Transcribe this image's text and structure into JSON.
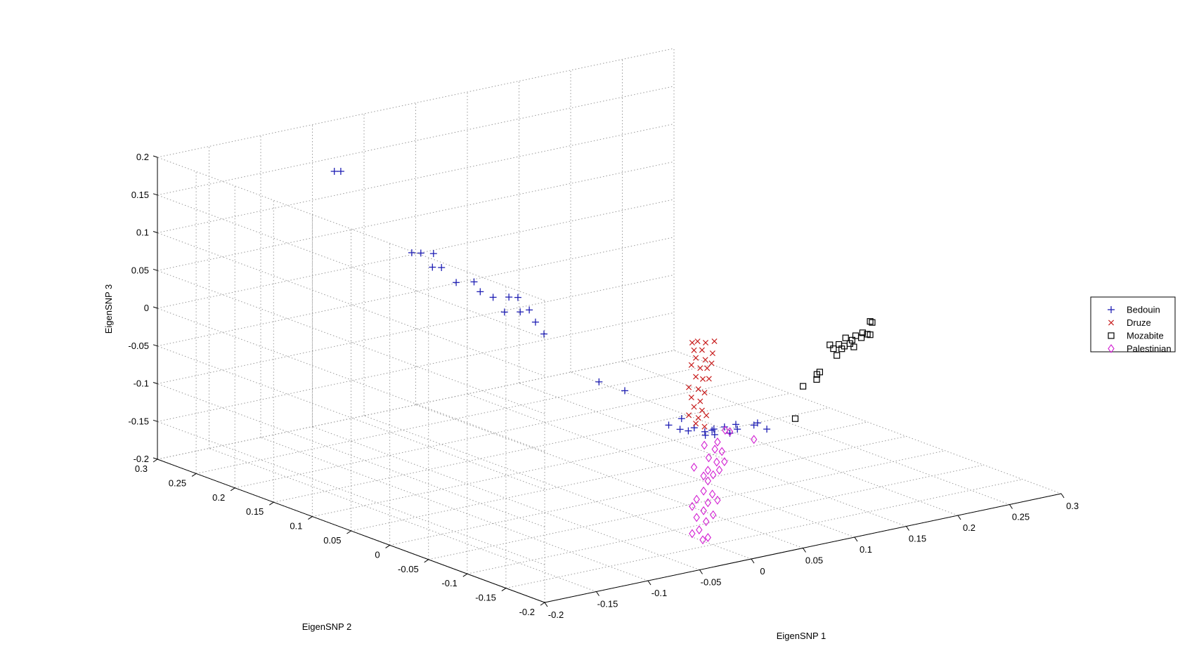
{
  "chart_data": {
    "type": "scatter",
    "subtype": "scatter3d",
    "xlabel": "EigenSNP 1",
    "ylabel": "EigenSNP 2",
    "zlabel": "EigenSNP 3",
    "xlim": [
      -0.2,
      0.3
    ],
    "ylim": [
      -0.2,
      0.3
    ],
    "zlim": [
      -0.2,
      0.2
    ],
    "x_ticks": [
      "-0.2",
      "-0.15",
      "-0.1",
      "-0.05",
      "0",
      "0.05",
      "0.1",
      "0.15",
      "0.2",
      "0.25",
      "0.3"
    ],
    "y_ticks": [
      "-0.2",
      "-0.15",
      "-0.1",
      "-0.05",
      "0",
      "0.05",
      "0.1",
      "0.15",
      "0.2",
      "0.25",
      "0.3"
    ],
    "z_ticks": [
      "-0.2",
      "-0.15",
      "-0.1",
      "-0.05",
      "0",
      "0.05",
      "0.1",
      "0.15",
      "0.2"
    ],
    "grid": true,
    "legend_position": "right",
    "series": [
      {
        "name": "Bedouin",
        "marker": "plus",
        "color": "#1f1fb4",
        "points": [
          [
            -0.064,
            0.253,
            0.16
          ],
          [
            -0.06,
            0.25,
            0.16
          ],
          [
            -0.055,
            0.165,
            0.083
          ],
          [
            -0.05,
            0.16,
            0.083
          ],
          [
            -0.043,
            0.153,
            0.083
          ],
          [
            -0.05,
            0.145,
            0.07
          ],
          [
            -0.045,
            0.14,
            0.07
          ],
          [
            -0.042,
            0.125,
            0.055
          ],
          [
            -0.03,
            0.118,
            0.055
          ],
          [
            -0.03,
            0.11,
            0.045
          ],
          [
            -0.025,
            0.1,
            0.04
          ],
          [
            -0.015,
            0.093,
            0.04
          ],
          [
            -0.01,
            0.088,
            0.04
          ],
          [
            -0.02,
            0.092,
            0.022
          ],
          [
            -0.01,
            0.085,
            0.022
          ],
          [
            -0.005,
            0.08,
            0.025
          ],
          [
            -0.005,
            0.072,
            0.012
          ],
          [
            -0.002,
            0.065,
            -0.002
          ],
          [
            0.01,
            0.01,
            -0.048
          ],
          [
            0.02,
            -0.01,
            -0.055
          ],
          [
            0.03,
            -0.07,
            -0.072
          ],
          [
            0.025,
            -0.06,
            -0.083
          ],
          [
            0.03,
            -0.068,
            -0.087
          ],
          [
            0.035,
            -0.072,
            -0.089
          ],
          [
            0.04,
            -0.073,
            -0.086
          ],
          [
            0.045,
            -0.08,
            -0.09
          ],
          [
            0.05,
            -0.085,
            -0.086
          ],
          [
            0.052,
            -0.08,
            -0.09
          ],
          [
            0.055,
            -0.092,
            -0.082
          ],
          [
            0.06,
            -0.1,
            -0.077
          ],
          [
            0.063,
            -0.098,
            -0.085
          ],
          [
            0.058,
            -0.095,
            -0.09
          ],
          [
            0.07,
            -0.11,
            -0.077
          ],
          [
            0.075,
            -0.12,
            -0.08
          ],
          [
            0.072,
            -0.112,
            -0.074
          ],
          [
            0.047,
            -0.078,
            -0.096
          ],
          [
            0.05,
            -0.086,
            -0.093
          ]
        ]
      },
      {
        "name": "Druze",
        "marker": "x",
        "color": "#c81e1e",
        "points": [
          [
            0.041,
            -0.069,
            0.025
          ],
          [
            0.044,
            -0.072,
            0.027
          ],
          [
            0.048,
            -0.077,
            0.026
          ],
          [
            0.052,
            -0.083,
            0.029
          ],
          [
            0.042,
            -0.07,
            0.015
          ],
          [
            0.046,
            -0.075,
            0.016
          ],
          [
            0.051,
            -0.082,
            0.013
          ],
          [
            0.043,
            -0.071,
            0.005
          ],
          [
            0.047,
            -0.078,
            0.004
          ],
          [
            0.05,
            -0.082,
            0.0
          ],
          [
            0.041,
            -0.068,
            -0.005
          ],
          [
            0.045,
            -0.074,
            -0.008
          ],
          [
            0.048,
            -0.079,
            -0.007
          ],
          [
            0.043,
            -0.071,
            -0.02
          ],
          [
            0.046,
            -0.076,
            -0.022
          ],
          [
            0.049,
            -0.08,
            -0.021
          ],
          [
            0.04,
            -0.066,
            -0.035
          ],
          [
            0.044,
            -0.073,
            -0.036
          ],
          [
            0.047,
            -0.077,
            -0.04
          ],
          [
            0.041,
            -0.068,
            -0.048
          ],
          [
            0.045,
            -0.074,
            -0.052
          ],
          [
            0.042,
            -0.07,
            -0.06
          ],
          [
            0.046,
            -0.075,
            -0.064
          ],
          [
            0.04,
            -0.066,
            -0.072
          ],
          [
            0.044,
            -0.073,
            -0.074
          ],
          [
            0.048,
            -0.078,
            -0.07
          ],
          [
            0.043,
            -0.071,
            -0.082
          ],
          [
            0.047,
            -0.077,
            -0.085
          ]
        ]
      },
      {
        "name": "Mozabite",
        "marker": "square",
        "color": "#000000",
        "points": [
          [
            0.19,
            -0.1,
            0.022
          ],
          [
            0.192,
            -0.1,
            0.02
          ],
          [
            0.179,
            -0.105,
            0.012
          ],
          [
            0.182,
            -0.107,
            0.01
          ],
          [
            0.18,
            -0.102,
            0.004
          ],
          [
            0.176,
            -0.1,
            0.007
          ],
          [
            0.184,
            -0.108,
            0.009
          ],
          [
            0.174,
            -0.098,
            0.001
          ],
          [
            0.17,
            -0.095,
            0.004
          ],
          [
            0.172,
            -0.098,
            -0.003
          ],
          [
            0.168,
            -0.096,
            -0.006
          ],
          [
            0.165,
            -0.093,
            -0.004
          ],
          [
            0.167,
            -0.094,
            -0.01
          ],
          [
            0.162,
            -0.09,
            -0.01
          ],
          [
            0.16,
            -0.088,
            -0.005
          ],
          [
            0.175,
            -0.099,
            -0.008
          ],
          [
            0.163,
            -0.093,
            -0.018
          ],
          [
            0.145,
            -0.095,
            -0.034
          ],
          [
            0.143,
            -0.094,
            -0.037
          ],
          [
            0.142,
            -0.095,
            -0.043
          ],
          [
            0.131,
            -0.092,
            -0.05
          ],
          [
            0.11,
            -0.11,
            -0.08
          ]
        ]
      },
      {
        "name": "Palestinian",
        "marker": "diamond",
        "color": "#d21ed2",
        "points": [
          [
            0.055,
            -0.093,
            -0.086
          ],
          [
            0.058,
            -0.095,
            -0.088
          ],
          [
            0.07,
            -0.11,
            -0.096
          ],
          [
            0.052,
            -0.087,
            -0.103
          ],
          [
            0.046,
            -0.078,
            -0.109
          ],
          [
            0.051,
            -0.085,
            -0.113
          ],
          [
            0.054,
            -0.09,
            -0.115
          ],
          [
            0.048,
            -0.081,
            -0.125
          ],
          [
            0.052,
            -0.086,
            -0.13
          ],
          [
            0.055,
            -0.092,
            -0.128
          ],
          [
            0.042,
            -0.07,
            -0.14
          ],
          [
            0.048,
            -0.08,
            -0.142
          ],
          [
            0.053,
            -0.088,
            -0.14
          ],
          [
            0.046,
            -0.077,
            -0.15
          ],
          [
            0.05,
            -0.084,
            -0.147
          ],
          [
            0.048,
            -0.08,
            -0.156
          ],
          [
            0.046,
            -0.077,
            -0.17
          ],
          [
            0.05,
            -0.083,
            -0.173
          ],
          [
            0.043,
            -0.072,
            -0.182
          ],
          [
            0.048,
            -0.08,
            -0.185
          ],
          [
            0.052,
            -0.087,
            -0.18
          ],
          [
            0.041,
            -0.069,
            -0.192
          ],
          [
            0.046,
            -0.077,
            -0.196
          ],
          [
            0.05,
            -0.084,
            -0.2
          ],
          [
            0.043,
            -0.072,
            -0.206
          ],
          [
            0.047,
            -0.079,
            -0.21
          ],
          [
            0.044,
            -0.074,
            -0.222
          ],
          [
            0.041,
            -0.069,
            -0.228
          ],
          [
            0.046,
            -0.076,
            -0.235
          ],
          [
            0.048,
            -0.08,
            -0.231
          ]
        ]
      }
    ]
  }
}
